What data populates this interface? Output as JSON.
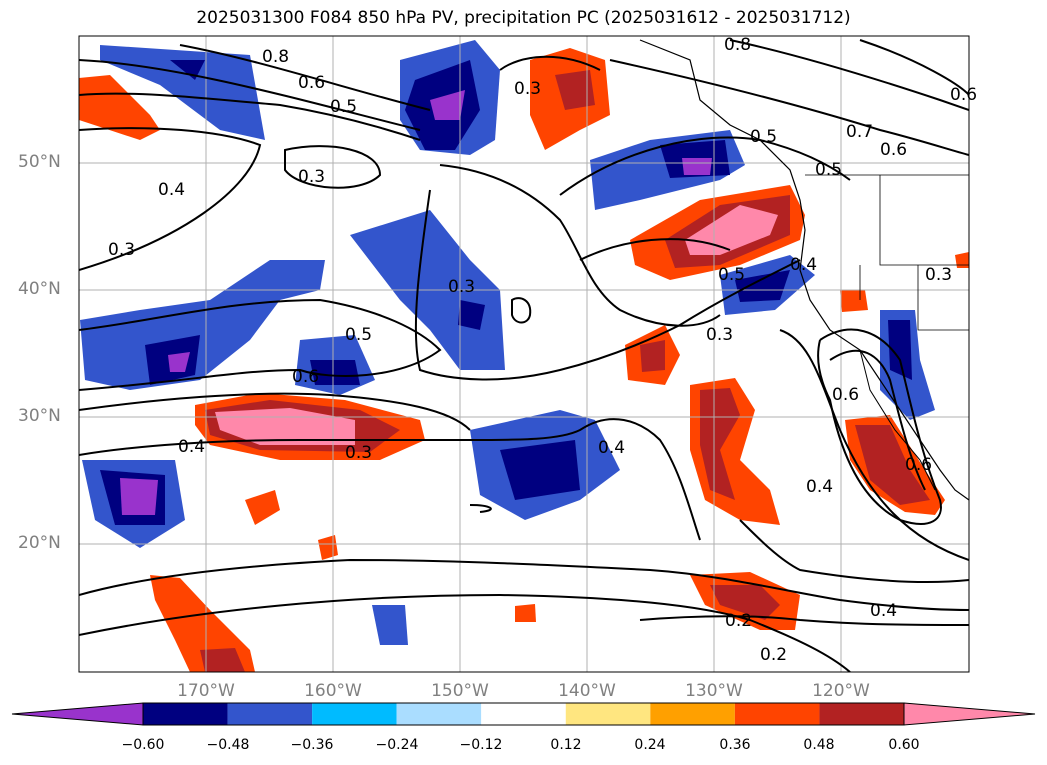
{
  "title": "2025031300 F084 850 hPa PV, precipitation PC (2025031612 - 2025031712)",
  "lat_labels": [
    "50°N",
    "40°N",
    "30°N",
    "20°N"
  ],
  "lon_labels": [
    "170°W",
    "160°W",
    "150°W",
    "140°W",
    "130°W",
    "120°W"
  ],
  "colorbar": {
    "ticks": [
      "−0.60",
      "−0.48",
      "−0.36",
      "−0.24",
      "−0.12",
      "0.12",
      "0.24",
      "0.36",
      "0.48",
      "0.60"
    ],
    "colors": [
      "#9933cc",
      "#000080",
      "#3355cc",
      "#00bbff",
      "#aaddff",
      "#ffffff",
      "#ffe680",
      "#ffa000",
      "#ff4400",
      "#b22222",
      "#ff88aa"
    ]
  },
  "contour_labels": [
    "0.8",
    "0.6",
    "0.5",
    "0.3",
    "0.3",
    "0.4",
    "0.3",
    "0.5",
    "0.6",
    "0.4",
    "0.3",
    "0.3",
    "0.5",
    "0.5",
    "0.7",
    "0.6",
    "0.8",
    "0.6",
    "0.5",
    "0.4",
    "0.3",
    "0.6",
    "0.6",
    "0.4",
    "0.4",
    "0.2",
    "0.2",
    "0.3",
    "0.4"
  ]
}
